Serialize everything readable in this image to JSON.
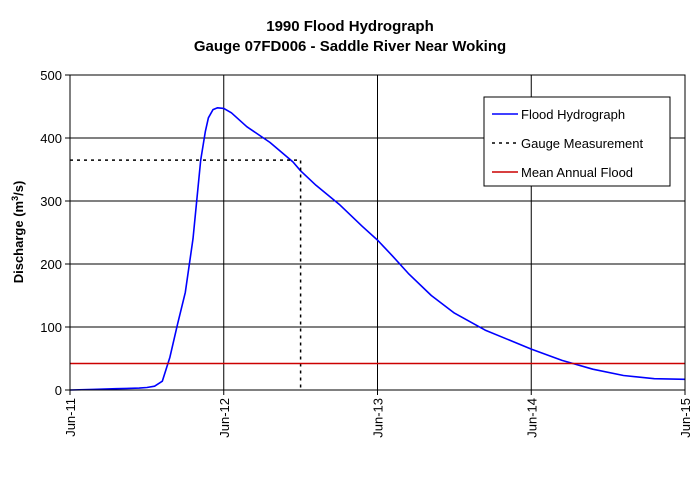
{
  "chart_data": {
    "type": "line",
    "title": "1990 Flood Hydrograph",
    "subtitle": "Gauge 07FD006 - Saddle River Near Woking",
    "xlabel": "",
    "ylabel": "Discharge (m",
    "ylabel_sup": "3",
    "ylabel_suffix": "/s)",
    "xlim": [
      0,
      4
    ],
    "ylim": [
      0,
      500
    ],
    "x_ticks": [
      0,
      1,
      2,
      3,
      4
    ],
    "x_tick_labels": [
      "Jun-11",
      "Jun-12",
      "Jun-13",
      "Jun-14",
      "Jun-15"
    ],
    "y_ticks": [
      0,
      100,
      200,
      300,
      400,
      500
    ],
    "grid": true,
    "legend_position": "top-right",
    "series": [
      {
        "name": "Flood Hydrograph",
        "color": "#0000ff",
        "style": "solid",
        "x": [
          0,
          0.15,
          0.3,
          0.45,
          0.5,
          0.55,
          0.6,
          0.65,
          0.7,
          0.75,
          0.8,
          0.85,
          0.88,
          0.9,
          0.93,
          0.96,
          1.0,
          1.05,
          1.15,
          1.3,
          1.45,
          1.5,
          1.6,
          1.75,
          1.9,
          2.0,
          2.1,
          2.2,
          2.35,
          2.5,
          2.7,
          3.0,
          3.2,
          3.4,
          3.6,
          3.8,
          4.0
        ],
        "y": [
          0,
          1,
          2,
          3,
          4,
          6,
          14,
          52,
          105,
          155,
          240,
          365,
          410,
          432,
          445,
          448,
          447,
          440,
          418,
          393,
          362,
          348,
          325,
          295,
          260,
          238,
          212,
          185,
          150,
          122,
          95,
          65,
          47,
          33,
          23,
          18,
          17
        ]
      },
      {
        "name": "Gauge Measurement",
        "color": "#000000",
        "style": "dotted",
        "x": [
          0,
          1.5,
          1.5
        ],
        "y": [
          365,
          365,
          0
        ]
      },
      {
        "name": "Mean Annual Flood",
        "color": "#cc0000",
        "style": "solid",
        "x": [
          0,
          4
        ],
        "y": [
          42,
          42
        ]
      }
    ]
  }
}
